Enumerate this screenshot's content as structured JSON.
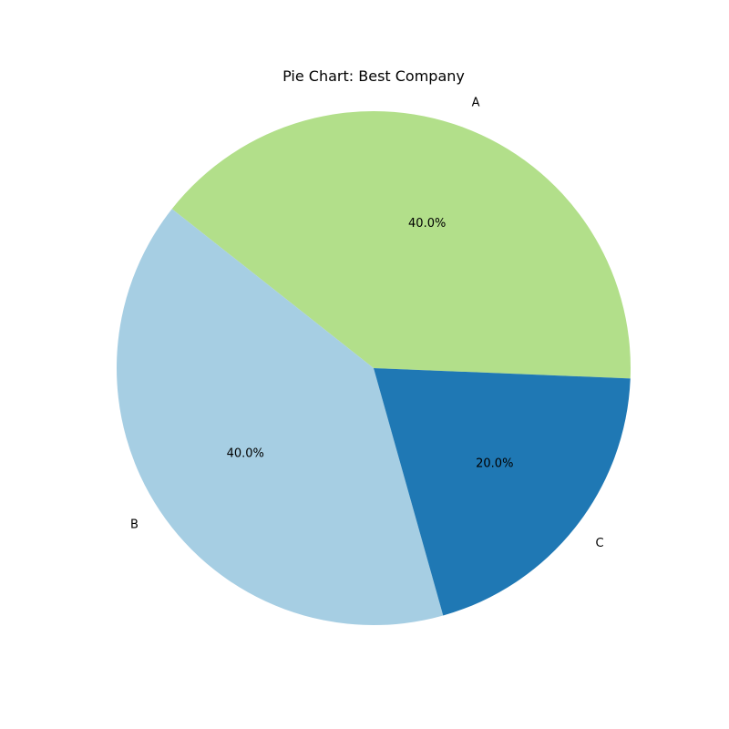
{
  "chart_data": {
    "type": "pie",
    "title": "Pie Chart: Best Company",
    "categories": [
      "A",
      "B",
      "C"
    ],
    "values": [
      40,
      40,
      20
    ],
    "percent_labels": [
      "40.0%",
      "40.0%",
      "20.0%"
    ],
    "colors": [
      "#b2df8a",
      "#a6cee3",
      "#1f78b4"
    ],
    "start_angle_deg": -2.3,
    "direction": "counterclockwise",
    "legend": "none"
  }
}
